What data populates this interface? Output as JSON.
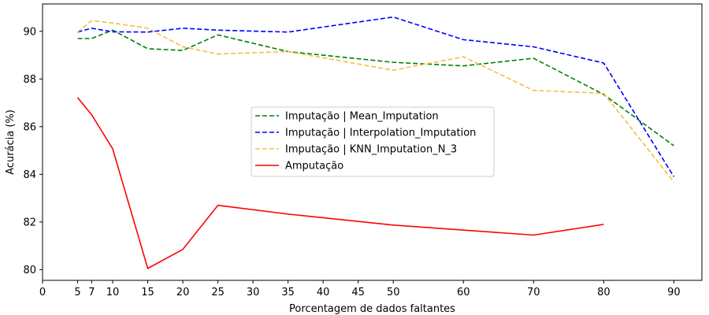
{
  "chart_data": {
    "type": "line",
    "title": "",
    "xlabel": "Porcentagem de dados faltantes",
    "ylabel": "Acurácia (%)",
    "xlim": [
      0,
      94
    ],
    "ylim": [
      79.55,
      91.15
    ],
    "xticks": [
      0,
      5,
      7,
      10,
      15,
      20,
      25,
      30,
      35,
      40,
      45,
      50,
      60,
      70,
      80,
      90
    ],
    "yticks": [
      80,
      82,
      84,
      86,
      88,
      90
    ],
    "grid": false,
    "legend_position": "center",
    "series": [
      {
        "name": "Imputação | Mean_Imputation",
        "color": "#008000",
        "dash": "dashed",
        "x": [
          5,
          7,
          10,
          15,
          20,
          25,
          35,
          50,
          60,
          70,
          80,
          90
        ],
        "y": [
          89.7,
          89.7,
          90.05,
          89.27,
          89.2,
          89.85,
          89.15,
          88.7,
          88.55,
          88.87,
          87.35,
          85.2
        ]
      },
      {
        "name": "Imputação | Interpolation_Imputation",
        "color": "#0000ff",
        "dash": "dashed",
        "x": [
          5,
          7,
          10,
          15,
          20,
          25,
          35,
          50,
          60,
          70,
          80,
          90
        ],
        "y": [
          89.97,
          90.13,
          89.98,
          89.97,
          90.13,
          90.05,
          89.97,
          90.6,
          89.65,
          89.35,
          88.67,
          83.9
        ]
      },
      {
        "name": "Imputação | KNN_Imputation_N_3",
        "color": "#f0c040",
        "dash": "dashed",
        "x": [
          5,
          7,
          10,
          15,
          20,
          25,
          35,
          50,
          60,
          70,
          80,
          90
        ],
        "y": [
          89.97,
          90.45,
          90.35,
          90.13,
          89.35,
          89.05,
          89.15,
          88.37,
          88.93,
          87.52,
          87.4,
          83.68
        ]
      },
      {
        "name": "Amputação",
        "color": "#ff0000",
        "dash": "solid",
        "x": [
          5,
          7,
          10,
          15,
          20,
          25,
          35,
          50,
          70,
          80
        ],
        "y": [
          87.22,
          86.5,
          85.07,
          80.05,
          80.85,
          82.7,
          82.33,
          81.87,
          81.45,
          81.9
        ]
      }
    ]
  }
}
